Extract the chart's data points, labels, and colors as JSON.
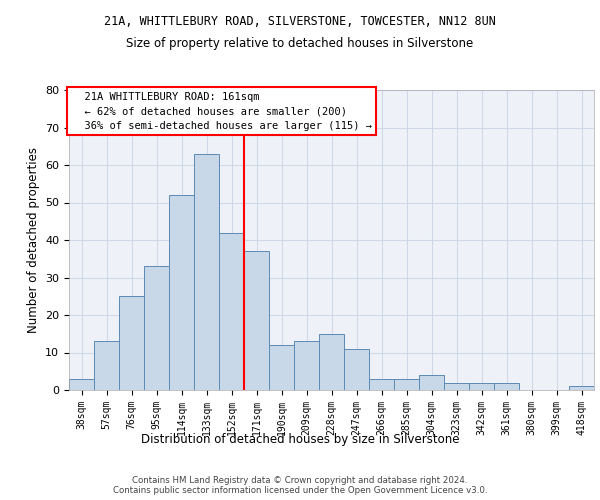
{
  "title1": "21A, WHITTLEBURY ROAD, SILVERSTONE, TOWCESTER, NN12 8UN",
  "title2": "Size of property relative to detached houses in Silverstone",
  "xlabel": "Distribution of detached houses by size in Silverstone",
  "ylabel": "Number of detached properties",
  "categories": [
    "38sqm",
    "57sqm",
    "76sqm",
    "95sqm",
    "114sqm",
    "133sqm",
    "152sqm",
    "171sqm",
    "190sqm",
    "209sqm",
    "228sqm",
    "247sqm",
    "266sqm",
    "285sqm",
    "304sqm",
    "323sqm",
    "342sqm",
    "361sqm",
    "380sqm",
    "399sqm",
    "418sqm"
  ],
  "bar_heights": [
    3,
    13,
    25,
    33,
    52,
    63,
    42,
    37,
    12,
    13,
    15,
    11,
    3,
    3,
    4,
    2,
    2,
    2,
    0,
    0,
    1
  ],
  "bar_color": "#c8d8e8",
  "bar_edge_color": "#5b8ab5",
  "grid_color": "#d0d8e8",
  "background_color": "#eef2f8",
  "vline_color": "red",
  "vline_pos": 6.5,
  "annotation_text": "  21A WHITTLEBURY ROAD: 161sqm\n  ← 62% of detached houses are smaller (200)\n  36% of semi-detached houses are larger (115) →",
  "annotation_box_color": "white",
  "annotation_box_edge": "red",
  "footnote": "Contains HM Land Registry data © Crown copyright and database right 2024.\nContains public sector information licensed under the Open Government Licence v3.0.",
  "ylim": [
    0,
    80
  ],
  "yticks": [
    0,
    10,
    20,
    30,
    40,
    50,
    60,
    70,
    80
  ]
}
